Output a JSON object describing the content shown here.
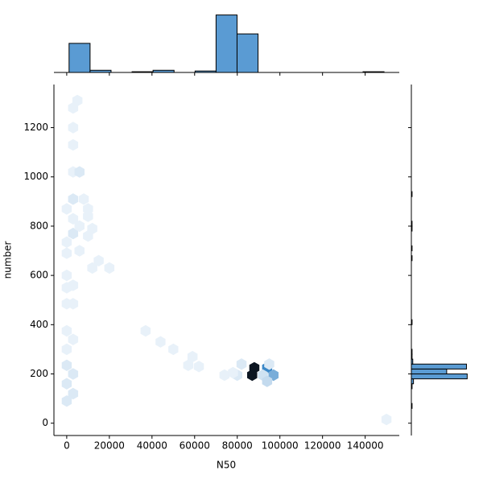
{
  "chart_data": [
    {
      "type": "hexbin",
      "x_label": "N50",
      "y_label": "number",
      "xlim": [
        -6000,
        156000
      ],
      "ylim": [
        -50,
        1375
      ],
      "xticks": [
        0,
        20000,
        40000,
        60000,
        80000,
        100000,
        120000,
        140000
      ],
      "yticks": [
        0,
        200,
        400,
        600,
        800,
        1000,
        1200
      ],
      "colormap": [
        "#f4f8fc",
        "#3b88c8",
        "#0c1622"
      ],
      "clim": [
        0,
        30
      ],
      "x": [
        88000,
        87000,
        94000,
        92000,
        97000,
        94000,
        95000,
        82000,
        80000,
        74000,
        78000,
        59000,
        57000,
        62000,
        50000,
        44000,
        37000,
        0,
        3000,
        3000,
        0,
        0,
        3000,
        0,
        0,
        0,
        3000,
        0,
        0,
        3000,
        0,
        0,
        3000,
        6000,
        10000,
        3000,
        0,
        3000,
        8000,
        6000,
        12000,
        15000,
        20000,
        10000,
        3000,
        6000,
        3000,
        3000,
        3000,
        5000,
        150000,
        10000,
        12000
      ],
      "y": [
        225,
        195,
        225,
        195,
        195,
        170,
        240,
        240,
        195,
        195,
        205,
        270,
        235,
        230,
        300,
        330,
        375,
        90,
        120,
        200,
        160,
        235,
        340,
        375,
        300,
        485,
        485,
        550,
        600,
        560,
        690,
        735,
        770,
        800,
        840,
        830,
        870,
        910,
        910,
        700,
        630,
        660,
        630,
        760,
        1020,
        1020,
        1130,
        1200,
        1280,
        1310,
        15,
        870,
        790
      ],
      "counts": [
        30,
        30,
        15,
        3,
        10,
        4,
        2,
        2,
        2,
        1,
        1,
        1,
        1,
        1,
        1,
        1,
        1,
        2,
        2,
        2,
        2,
        2,
        1,
        1,
        1,
        1,
        1,
        1,
        1,
        1,
        1,
        1,
        2,
        1,
        1,
        1,
        1,
        2,
        1,
        1,
        1,
        1,
        1,
        1,
        1,
        2,
        1,
        1,
        1,
        1,
        1,
        1,
        1
      ]
    },
    {
      "type": "histogram",
      "orientation": "vertical",
      "color": "#5a9bd3",
      "ylim": [
        0,
        83
      ],
      "bins": [
        1100,
        10950,
        20800,
        30650,
        40500,
        50350,
        60200,
        70050,
        79900,
        89750,
        99600,
        109450,
        119300,
        129150,
        139000,
        148850
      ],
      "counts": [
        40,
        3,
        0,
        1,
        3,
        0,
        2,
        79,
        53,
        0,
        0,
        0,
        0,
        0,
        1
      ]
    },
    {
      "type": "histogram",
      "orientation": "horizontal",
      "color": "#5a9bd3",
      "xlim": [
        0,
        90
      ],
      "bins": [
        60,
        80,
        100,
        120,
        140,
        160,
        180,
        200,
        220,
        240,
        260,
        280,
        300,
        320,
        340,
        360,
        380,
        400,
        420,
        440,
        460,
        480,
        500,
        520,
        540,
        560,
        580,
        600,
        620,
        640,
        660,
        680,
        700,
        720,
        740,
        760,
        780,
        800,
        820,
        840,
        860,
        880,
        900,
        920,
        940
      ],
      "counts": [
        1,
        0,
        0,
        0,
        1,
        3,
        79,
        50,
        78,
        2,
        1,
        1,
        0,
        0,
        0,
        0,
        0,
        1,
        0,
        0,
        0,
        0,
        0,
        0,
        0,
        0,
        0,
        0,
        0,
        0,
        1,
        0,
        1,
        0,
        0,
        0,
        1,
        1,
        0,
        0,
        0,
        0,
        0,
        1
      ]
    }
  ]
}
